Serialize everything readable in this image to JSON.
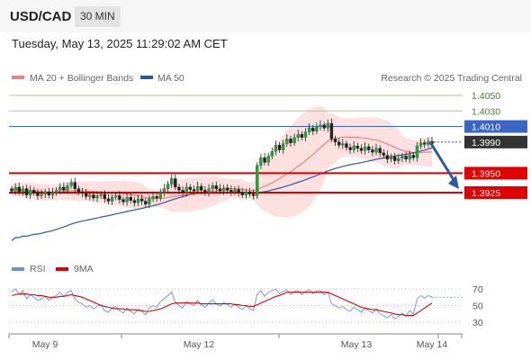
{
  "header": {
    "symbol": "USD/CAD",
    "interval": "30 MIN",
    "timestamp": "Tuesday, May 13, 2025 11:29:02 AM CET"
  },
  "legend": {
    "ma20_label": "MA 20 + Bollinger Bands",
    "ma50_label": "MA 50",
    "credit": "Research © 2025 Trading Central",
    "ma20_color": "#f08080",
    "ma50_color": "#2c5aa0"
  },
  "rsi_legend": {
    "rsi_label": "RSI",
    "ma_label": "9MA",
    "rsi_color": "#6f8fe0",
    "ma_color": "#dd0000"
  },
  "chart_data": [
    {
      "type": "candlestick",
      "title": "USD/CAD",
      "ylim": [
        1.3875,
        1.4075
      ],
      "levels": [
        {
          "value": 1.405,
          "label": "1.4050",
          "style": "green"
        },
        {
          "value": 1.403,
          "label": "1.4030",
          "style": "green"
        },
        {
          "value": 1.401,
          "label": "1.4010",
          "style": "blue"
        },
        {
          "value": 1.399,
          "label": "1.3990",
          "style": "current"
        },
        {
          "value": 1.395,
          "label": "1.3950",
          "style": "red"
        },
        {
          "value": 1.3925,
          "label": "1.3925",
          "style": "red"
        }
      ],
      "x_ticks": [
        "May 9",
        "May 12",
        "May 13",
        "May 14"
      ],
      "close": [
        1.3927,
        1.3932,
        1.3926,
        1.393,
        1.3922,
        1.3928,
        1.3925,
        1.3921,
        1.3923,
        1.3926,
        1.3922,
        1.3925,
        1.3928,
        1.3932,
        1.3928,
        1.3934,
        1.3938,
        1.393,
        1.3926,
        1.3924,
        1.392,
        1.3922,
        1.3918,
        1.3921,
        1.3923,
        1.3917,
        1.3914,
        1.3919,
        1.3921,
        1.3916,
        1.3913,
        1.3919,
        1.3915,
        1.3912,
        1.3917,
        1.3914,
        1.391,
        1.3917,
        1.392,
        1.3918,
        1.3925,
        1.393,
        1.3936,
        1.3943,
        1.3932,
        1.3928,
        1.3925,
        1.3932,
        1.3929,
        1.3927,
        1.3933,
        1.3928,
        1.3925,
        1.393,
        1.3934,
        1.393,
        1.3927,
        1.3931,
        1.3928,
        1.3926,
        1.3929,
        1.3925,
        1.3922,
        1.3926,
        1.3923,
        1.3921,
        1.396,
        1.397,
        1.3964,
        1.3972,
        1.3978,
        1.3986,
        1.398,
        1.3988,
        1.3994,
        1.3989,
        1.3996,
        1.4,
        1.3996,
        1.4003,
        1.4008,
        1.4004,
        1.401,
        1.4012,
        1.4008,
        1.4014,
        1.3994,
        1.399,
        1.3986,
        1.3988,
        1.3983,
        1.398,
        1.3985,
        1.3982,
        1.3979,
        1.3984,
        1.398,
        1.3977,
        1.3982,
        1.3976,
        1.3973,
        1.3968,
        1.3971,
        1.3966,
        1.3969,
        1.3972,
        1.3968,
        1.3973,
        1.397,
        1.3985,
        1.3989,
        1.3987,
        1.3991,
        1.3988
      ],
      "open": [
        1.393,
        1.3927,
        1.3932,
        1.3926,
        1.393,
        1.3922,
        1.3928,
        1.3925,
        1.3921,
        1.3923,
        1.3926,
        1.3922,
        1.3925,
        1.3928,
        1.3932,
        1.3928,
        1.3934,
        1.3938,
        1.393,
        1.3926,
        1.3924,
        1.392,
        1.3922,
        1.3918,
        1.3921,
        1.3923,
        1.3917,
        1.3914,
        1.3919,
        1.3921,
        1.3916,
        1.3913,
        1.3919,
        1.3915,
        1.3912,
        1.3917,
        1.3914,
        1.391,
        1.3917,
        1.392,
        1.3918,
        1.3925,
        1.393,
        1.3936,
        1.3943,
        1.3932,
        1.3928,
        1.3925,
        1.3932,
        1.3929,
        1.3927,
        1.3933,
        1.3928,
        1.3925,
        1.393,
        1.3934,
        1.393,
        1.3927,
        1.3931,
        1.3928,
        1.3926,
        1.3929,
        1.3925,
        1.3922,
        1.3926,
        1.3923,
        1.3921,
        1.396,
        1.397,
        1.3964,
        1.3972,
        1.3978,
        1.3986,
        1.398,
        1.3988,
        1.3994,
        1.3989,
        1.3996,
        1.4,
        1.3996,
        1.4003,
        1.4008,
        1.4004,
        1.401,
        1.4012,
        1.4008,
        1.4014,
        1.3994,
        1.399,
        1.3986,
        1.3988,
        1.3983,
        1.398,
        1.3985,
        1.3982,
        1.3979,
        1.3984,
        1.398,
        1.3977,
        1.3982,
        1.3976,
        1.3973,
        1.3968,
        1.3971,
        1.3966,
        1.3969,
        1.3972,
        1.3968,
        1.3973,
        1.397,
        1.3985,
        1.3989,
        1.3987,
        1.3991
      ]
    },
    {
      "type": "line",
      "title": "RSI",
      "ylim": [
        20,
        80
      ],
      "y_ticks": [
        "70",
        "50",
        "30"
      ],
      "series": [
        {
          "name": "RSI",
          "values": [
            66,
            70,
            63,
            68,
            58,
            63,
            60,
            56,
            58,
            61,
            56,
            60,
            62,
            66,
            61,
            66,
            68,
            58,
            54,
            52,
            48,
            50,
            46,
            49,
            51,
            44,
            42,
            47,
            49,
            44,
            41,
            47,
            43,
            40,
            46,
            43,
            39,
            47,
            50,
            48,
            55,
            58,
            62,
            66,
            54,
            50,
            47,
            55,
            52,
            50,
            56,
            51,
            48,
            53,
            57,
            52,
            49,
            54,
            51,
            48,
            52,
            48,
            45,
            49,
            46,
            44,
            64,
            68,
            61,
            66,
            68,
            70,
            64,
            67,
            69,
            63,
            67,
            68,
            63,
            67,
            69,
            64,
            68,
            68,
            63,
            66,
            52,
            50,
            47,
            49,
            45,
            43,
            48,
            45,
            42,
            47,
            44,
            41,
            46,
            40,
            38,
            35,
            39,
            34,
            37,
            41,
            37,
            44,
            40,
            58,
            62,
            59,
            62,
            60
          ]
        },
        {
          "name": "9MA",
          "values": [
            62,
            63,
            64,
            64,
            64,
            63,
            63,
            62,
            62,
            61,
            60,
            60,
            60,
            61,
            61,
            62,
            63,
            62,
            61,
            60,
            58,
            56,
            54,
            52,
            50,
            49,
            48,
            47,
            46,
            46,
            46,
            45,
            45,
            45,
            44,
            44,
            43,
            43,
            44,
            45,
            46,
            48,
            50,
            52,
            53,
            53,
            53,
            53,
            53,
            53,
            53,
            52,
            52,
            52,
            52,
            52,
            52,
            52,
            52,
            52,
            51,
            51,
            50,
            50,
            49,
            49,
            51,
            53,
            55,
            57,
            59,
            61,
            62,
            64,
            66,
            66,
            66,
            66,
            66,
            66,
            66,
            66,
            66,
            66,
            66,
            66,
            64,
            62,
            60,
            58,
            56,
            54,
            52,
            50,
            48,
            47,
            46,
            45,
            45,
            44,
            43,
            42,
            41,
            40,
            39,
            39,
            38,
            38,
            38,
            41,
            44,
            47,
            50,
            53
          ]
        }
      ]
    }
  ]
}
